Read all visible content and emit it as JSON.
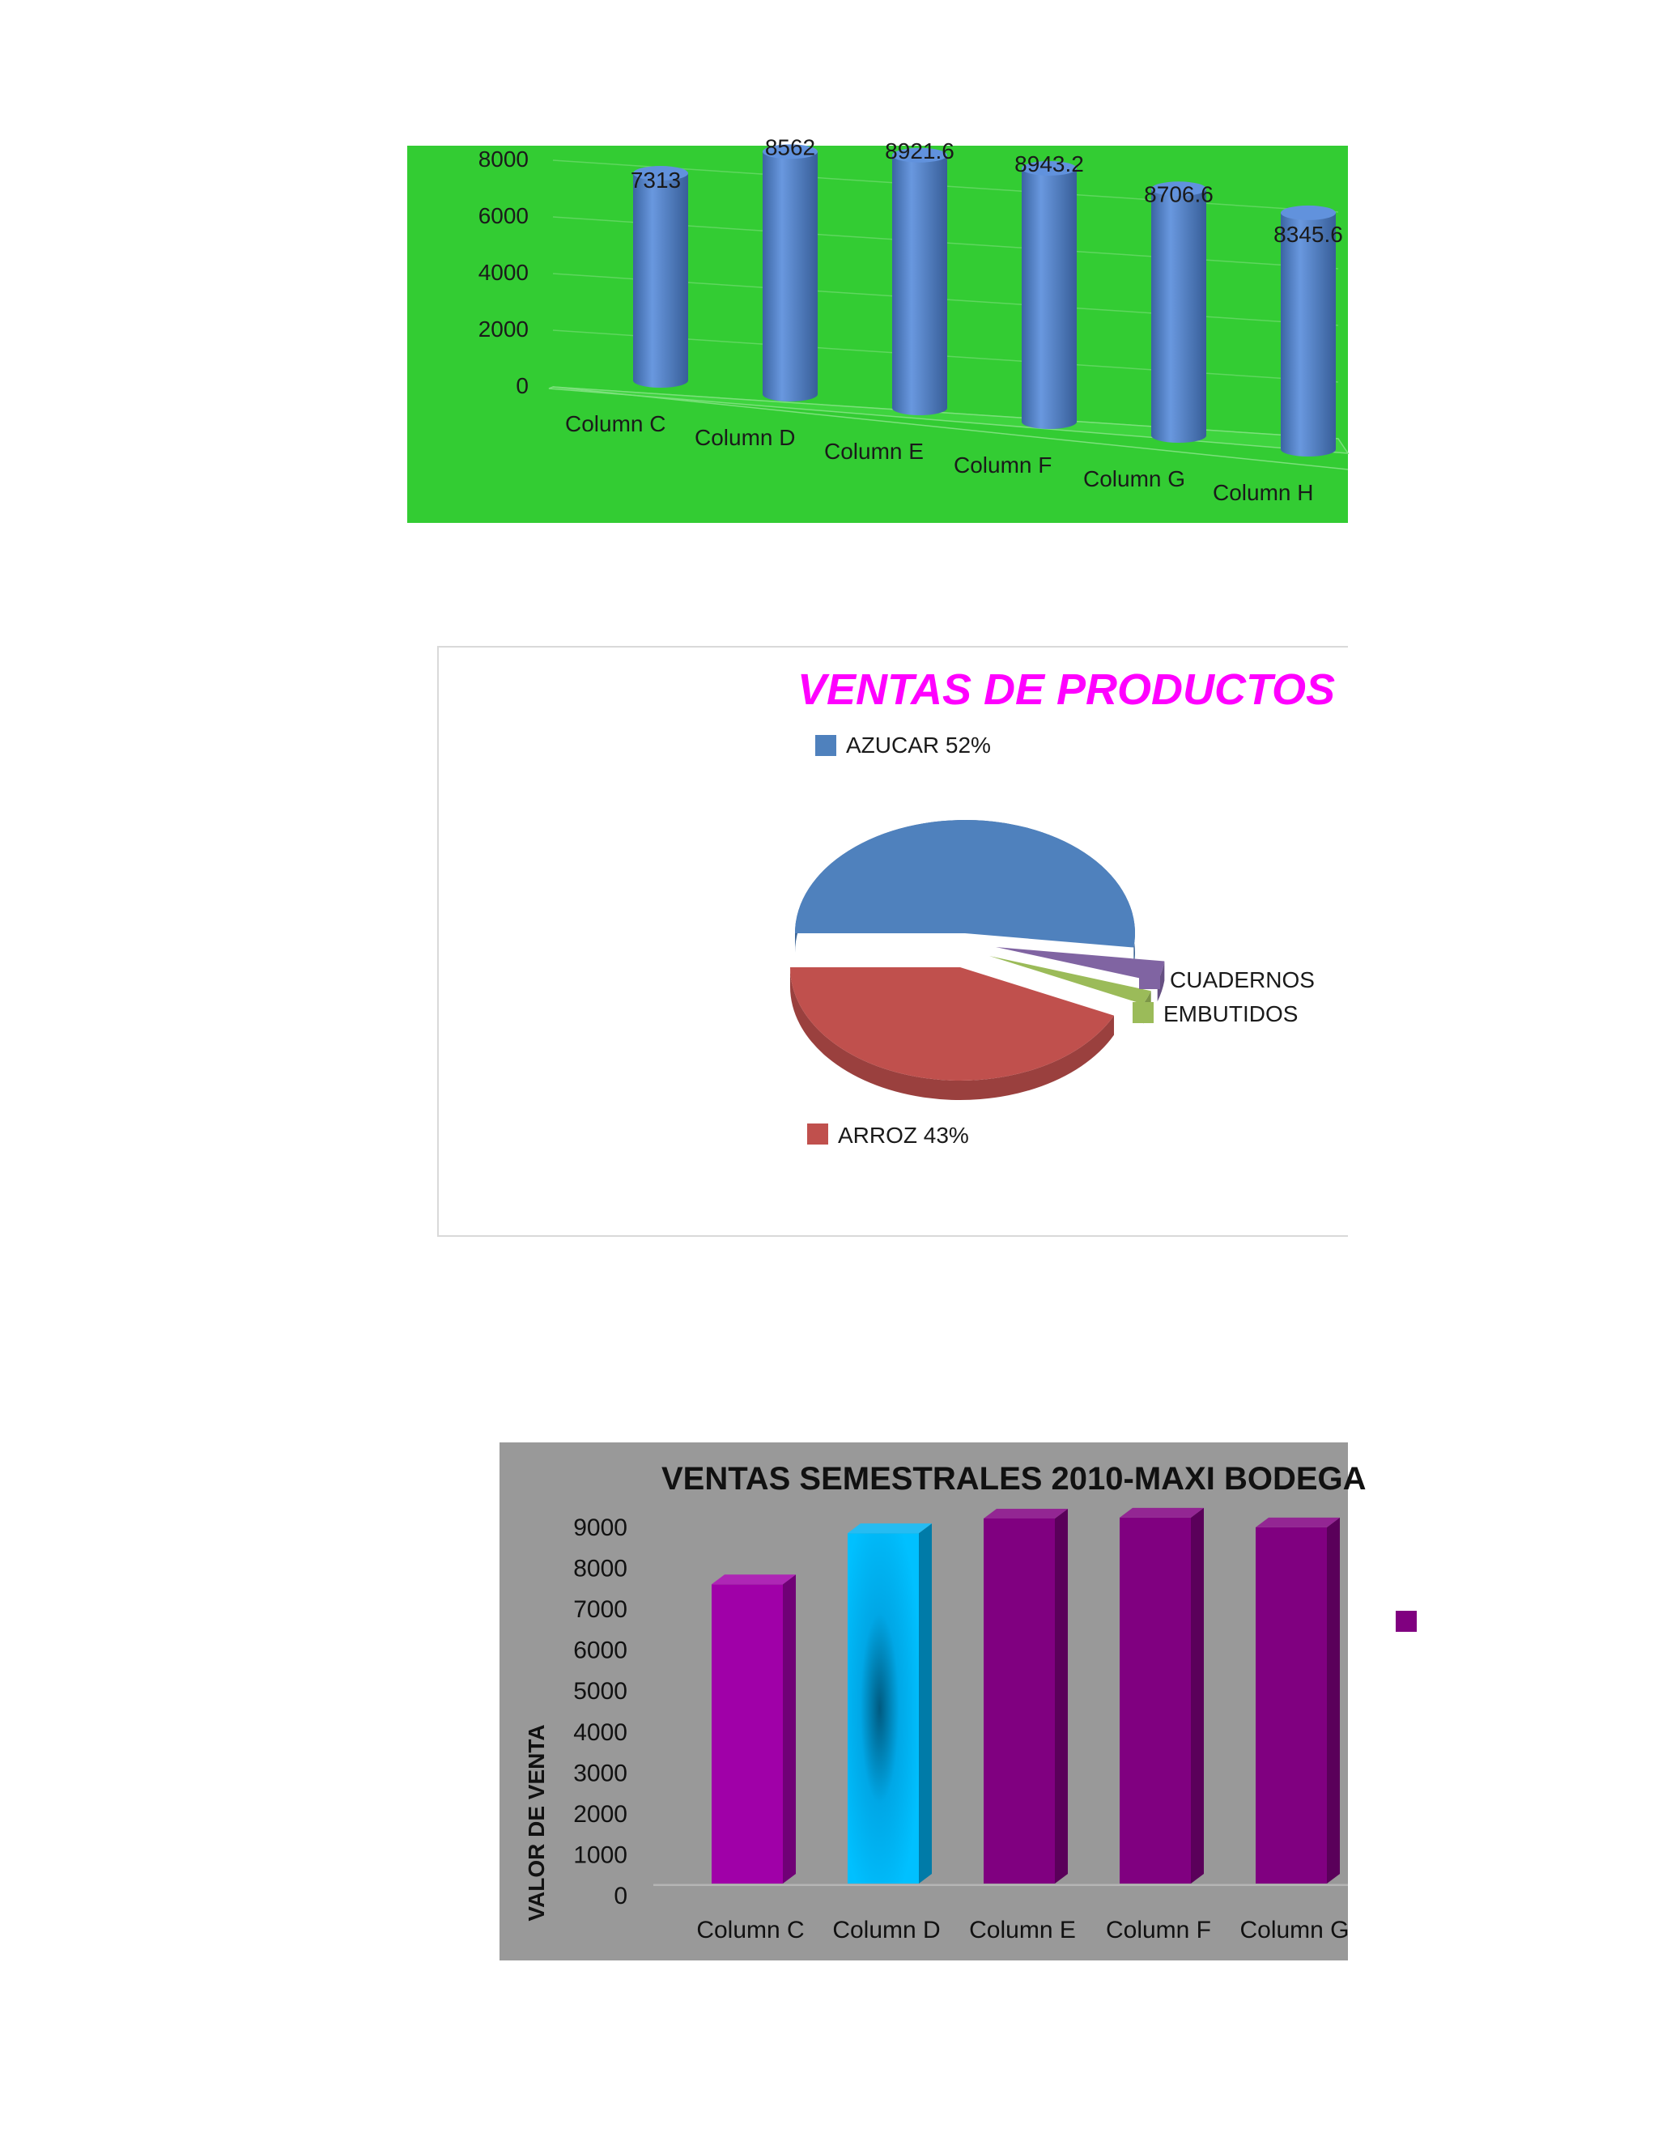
{
  "charts": [
    {
      "id": "chart1",
      "chart_data": {
        "type": "bar",
        "style": "3d-cylinder",
        "categories": [
          "Column C",
          "Column D",
          "Column E",
          "Column F",
          "Column G",
          "Column H"
        ],
        "values": [
          7313,
          8562,
          8921.6,
          8943.2,
          8706.6,
          8345.6
        ],
        "value_labels": [
          "7313",
          "8562",
          "8921.6",
          "8943.2",
          "8706.6",
          "8345.6"
        ],
        "yticks": [
          "0",
          "2000",
          "4000",
          "6000",
          "8000"
        ],
        "ylim": [
          0,
          8000
        ],
        "background": "#33cc33",
        "bar_color": "#4f86d9",
        "grid": true
      }
    },
    {
      "id": "chart2",
      "chart_data": {
        "type": "pie",
        "style": "3d-exploded",
        "title": "VENTAS DE PRODUCTOS",
        "slices": [
          {
            "label": "AZUCAR 52%",
            "value": 52,
            "color": "#4f81bd"
          },
          {
            "label": "CUADERNOS",
            "value": 3,
            "color": "#8064a2"
          },
          {
            "label": "EMBUTIDOS",
            "value": 2,
            "color": "#9bbb59"
          },
          {
            "label": "ARROZ 43%",
            "value": 43,
            "color": "#c0504d"
          }
        ],
        "title_color": "#ff00ff"
      }
    },
    {
      "id": "chart3",
      "chart_data": {
        "type": "bar",
        "style": "3d-column",
        "title": "VENTAS SEMESTRALES 2010-MAXI BODEGA",
        "ylabel": "VALOR DE VENTA",
        "categories": [
          "Column C",
          "Column D",
          "Column E",
          "Column F",
          "Column G"
        ],
        "values": [
          7313,
          8562,
          8921.6,
          8943.2,
          8706.6
        ],
        "colors": [
          "#a000a8",
          "#00b0f0",
          "#800080",
          "#800080",
          "#800080"
        ],
        "yticks": [
          "0",
          "1000",
          "2000",
          "3000",
          "4000",
          "5000",
          "6000",
          "7000",
          "8000",
          "9000"
        ],
        "ylim": [
          0,
          9000
        ],
        "background": "#999999",
        "legend_color": "#800080"
      }
    }
  ]
}
